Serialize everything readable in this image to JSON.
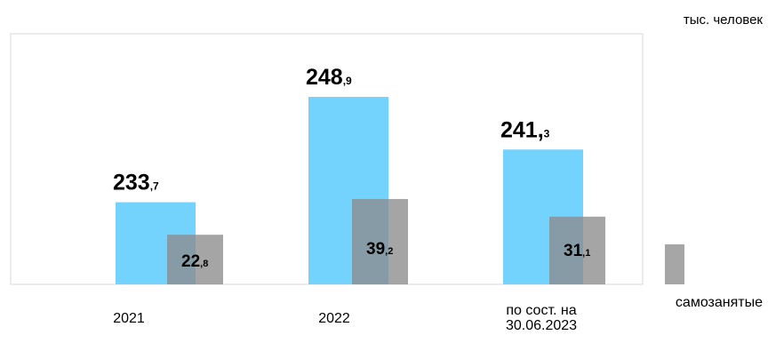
{
  "chart_data": {
    "type": "bar",
    "unit_label": "тыс. человек",
    "categories": [
      "2021",
      "2022",
      "по сост. на 30.06.2023"
    ],
    "category_labels": [
      [
        "2021"
      ],
      [
        "2022"
      ],
      [
        "по сост. на",
        "30.06.2023"
      ]
    ],
    "series": [
      {
        "values": [
          233.7,
          248.9,
          241.3
        ],
        "label_int": [
          "233",
          "248",
          "241,"
        ],
        "label_frac": [
          ",7",
          ",9",
          "3"
        ],
        "color": "#74D3FC"
      },
      {
        "name": "самозанятые",
        "values": [
          22.8,
          39.2,
          31.1
        ],
        "label_int": [
          "22",
          "39",
          "31"
        ],
        "label_frac": [
          ",8",
          ",2",
          ",1"
        ],
        "color": "#8C8C8C"
      }
    ],
    "legend_position": "bottom-right",
    "grid": false
  }
}
